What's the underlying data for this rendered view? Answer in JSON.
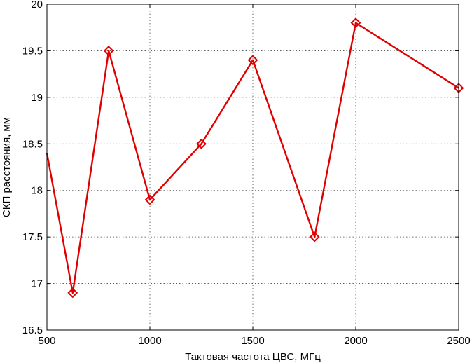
{
  "chart_data": {
    "type": "line",
    "xlabel": "Тактовая частота ЦВС, МГц",
    "ylabel": "СКП расстояния, мм",
    "xlim": [
      500,
      2500
    ],
    "ylim": [
      16.5,
      20
    ],
    "x_ticks": [
      500,
      1000,
      1500,
      2000,
      2500
    ],
    "y_ticks": [
      16.5,
      17,
      17.5,
      18,
      18.5,
      19,
      19.5,
      20
    ],
    "x_tick_labels": [
      "500",
      "1000",
      "1500",
      "2000",
      "2500"
    ],
    "y_tick_labels": [
      "16.5",
      "17",
      "17.5",
      "18",
      "18.5",
      "19",
      "19.5",
      "20"
    ],
    "grid": true,
    "line_start": {
      "x": 500,
      "y": 18.4
    },
    "series": [
      {
        "color": "#e00000",
        "marker": "diamond",
        "x": [
          625,
          800,
          1000,
          1250,
          1500,
          1800,
          2000,
          2500
        ],
        "y": [
          16.9,
          19.5,
          17.9,
          18.5,
          19.4,
          17.5,
          19.8,
          19.1
        ]
      }
    ]
  }
}
